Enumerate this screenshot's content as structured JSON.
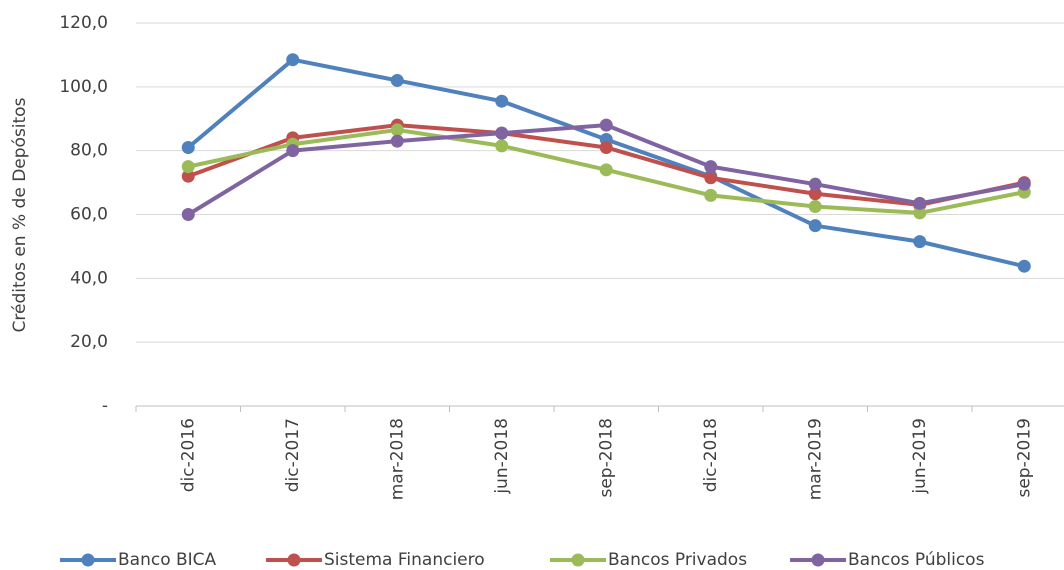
{
  "chart_data": {
    "type": "line",
    "y_label": "Créditos en % de Depósitos",
    "categories": [
      "dic-2016",
      "dic-2017",
      "mar-2018",
      "jun-2018",
      "sep-2018",
      "dic-2018",
      "mar-2019",
      "jun-2019",
      "sep-2019"
    ],
    "series": [
      {
        "name": "Banco BICA",
        "color": "#4f81bd",
        "values": [
          81,
          108.5,
          102,
          95.5,
          83.5,
          72,
          56.5,
          51.5,
          43.8
        ]
      },
      {
        "name": "Sistema Financiero",
        "color": "#c0504d",
        "values": [
          72,
          84,
          88,
          85.5,
          81,
          71.5,
          66.5,
          63,
          70
        ]
      },
      {
        "name": "Bancos Privados",
        "color": "#9bbb59",
        "values": [
          75,
          82,
          86.5,
          81.5,
          74,
          66,
          62.5,
          60.5,
          67
        ]
      },
      {
        "name": "Bancos Públicos",
        "color": "#8064a2",
        "values": [
          60,
          80,
          83,
          85.5,
          88,
          75,
          69.5,
          63.5,
          69.5
        ]
      }
    ],
    "ylim": [
      0,
      120
    ],
    "yticks": [
      {
        "value": 0,
        "label": "-"
      },
      {
        "value": 20,
        "label": "20,0"
      },
      {
        "value": 40,
        "label": "40,0"
      },
      {
        "value": 60,
        "label": "60,0"
      },
      {
        "value": 80,
        "label": "80,0"
      },
      {
        "value": 100,
        "label": "100,0"
      },
      {
        "value": 120,
        "label": "120,0"
      }
    ],
    "grid": true,
    "legend": "bottom"
  }
}
